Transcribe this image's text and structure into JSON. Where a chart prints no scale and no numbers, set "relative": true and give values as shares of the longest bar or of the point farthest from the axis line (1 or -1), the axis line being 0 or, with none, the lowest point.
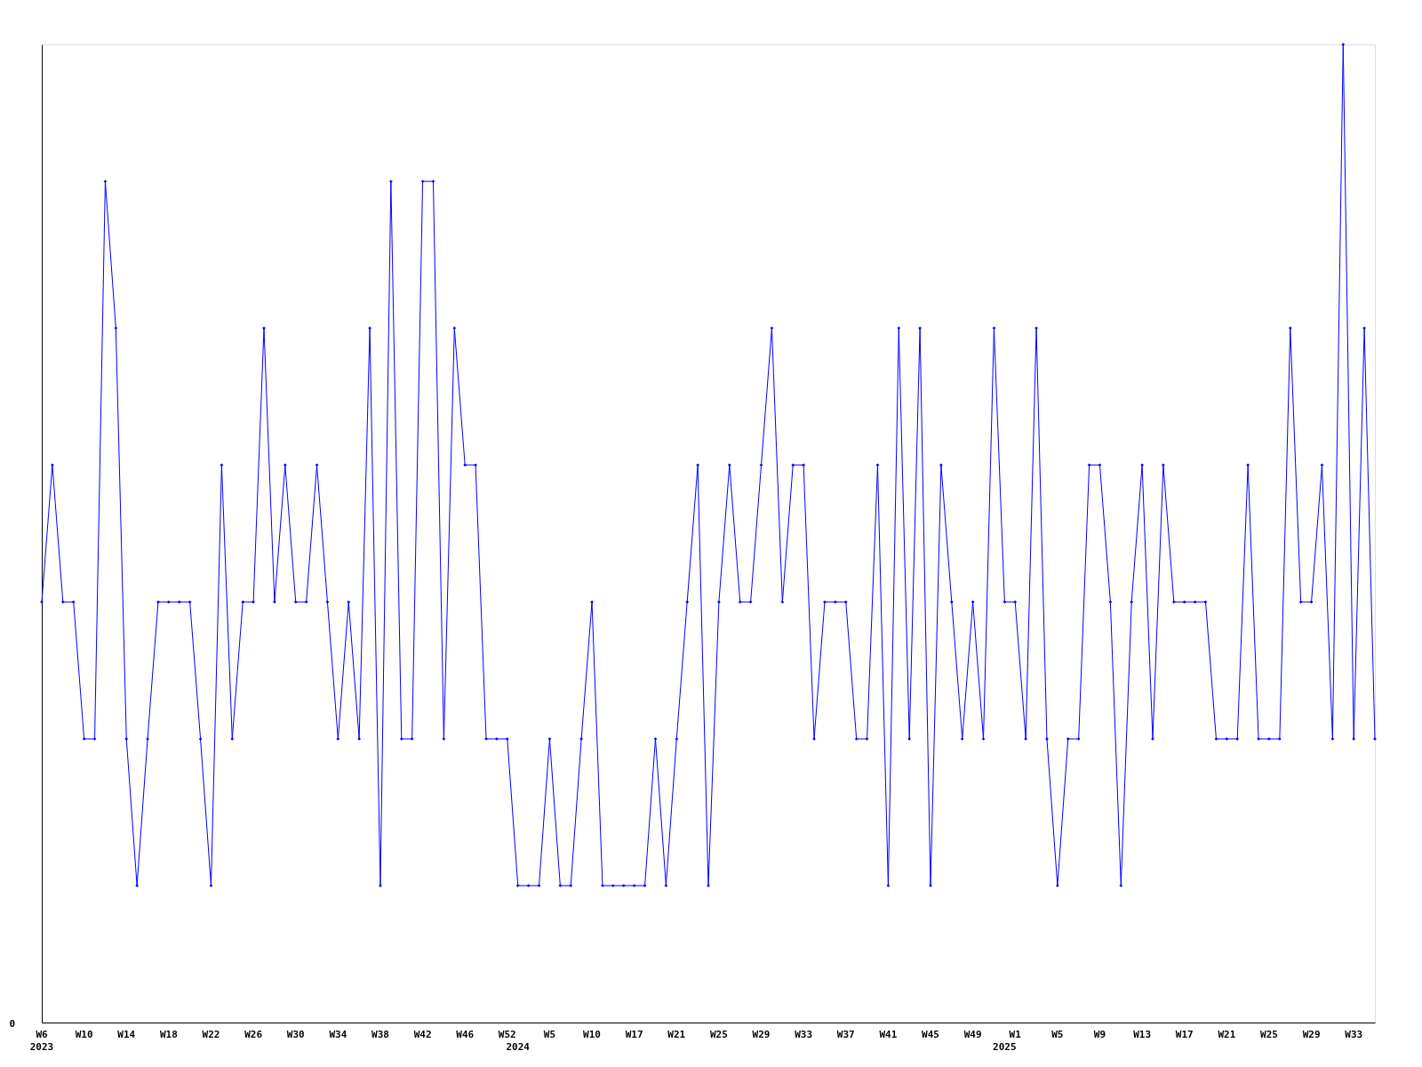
{
  "chart_data": {
    "type": "line",
    "relative": true,
    "color": "#0000ff",
    "marker": "diamond",
    "line_style": "solid",
    "grid": false,
    "annotations": [
      "0"
    ],
    "categories": [
      "W6\n2023",
      null,
      null,
      null,
      "W10",
      null,
      null,
      null,
      "W14",
      null,
      null,
      null,
      "W18",
      null,
      null,
      null,
      "W22",
      null,
      null,
      null,
      "W26",
      null,
      null,
      null,
      "W30",
      null,
      null,
      null,
      "W34",
      null,
      null,
      null,
      "W38",
      null,
      null,
      null,
      "W42",
      null,
      null,
      null,
      "W46",
      null,
      null,
      null,
      "W52",
      "\n2024",
      null,
      null,
      "W5",
      null,
      null,
      null,
      "W10",
      null,
      null,
      null,
      "W17",
      null,
      null,
      null,
      "W21",
      null,
      null,
      null,
      "W25",
      null,
      null,
      null,
      "W29",
      null,
      null,
      null,
      "W33",
      null,
      null,
      null,
      "W37",
      null,
      null,
      null,
      "W41",
      null,
      null,
      null,
      "W45",
      null,
      null,
      null,
      "W49",
      null,
      null,
      "\n2025",
      "W1",
      null,
      null,
      null,
      "W5",
      null,
      null,
      null,
      "W9",
      null,
      null,
      null,
      "W13",
      null,
      null,
      null,
      "W17",
      null,
      null,
      null,
      "W21",
      null,
      null,
      null,
      "W25",
      null,
      null,
      null,
      "W29",
      null,
      null,
      null,
      "W33",
      null,
      null
    ],
    "values": [
      0.43,
      0.57,
      0.43,
      0.43,
      0.29,
      0.29,
      0.86,
      0.71,
      0.29,
      0.14,
      0.29,
      0.43,
      0.43,
      0.43,
      0.43,
      0.29,
      0.14,
      0.57,
      0.29,
      0.43,
      0.43,
      0.71,
      0.43,
      0.57,
      0.43,
      0.43,
      0.57,
      0.43,
      0.29,
      0.43,
      0.29,
      0.71,
      0.14,
      0.86,
      0.29,
      0.29,
      0.86,
      0.86,
      0.29,
      0.71,
      0.57,
      0.57,
      0.29,
      0.29,
      0.29,
      0.14,
      0.14,
      0.14,
      0.29,
      0.14,
      0.14,
      0.29,
      0.43,
      0.14,
      0.14,
      0.14,
      0.14,
      0.14,
      0.29,
      0.14,
      0.29,
      0.43,
      0.57,
      0.14,
      0.43,
      0.57,
      0.43,
      0.43,
      0.57,
      0.71,
      0.43,
      0.57,
      0.57,
      0.29,
      0.43,
      0.43,
      0.43,
      0.29,
      0.29,
      0.57,
      0.14,
      0.71,
      0.29,
      0.71,
      0.14,
      0.57,
      0.43,
      0.29,
      0.43,
      0.29,
      0.71,
      0.43,
      0.43,
      0.29,
      0.71,
      0.29,
      0.14,
      0.29,
      0.29,
      0.57,
      0.57,
      0.43,
      0.14,
      0.43,
      0.57,
      0.29,
      0.57,
      0.43,
      0.43,
      0.43,
      0.43,
      0.29,
      0.29,
      0.29,
      0.57,
      0.29,
      0.29,
      0.29,
      0.71,
      0.43,
      0.43,
      0.57,
      0.29,
      1,
      0.29,
      0.71,
      0.29
    ]
  }
}
